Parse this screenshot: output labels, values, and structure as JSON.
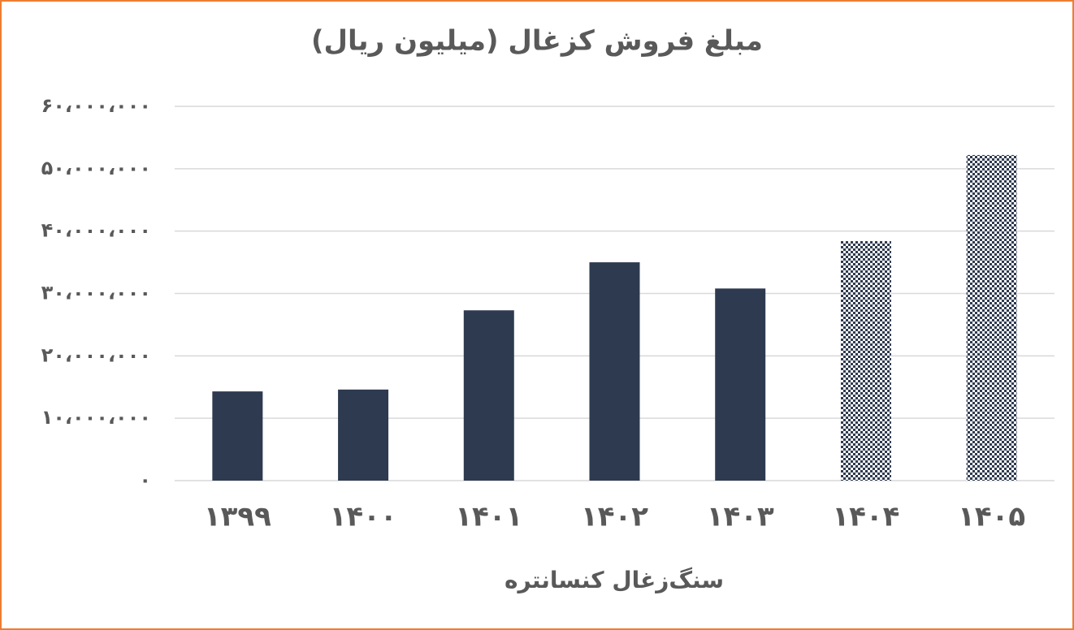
{
  "chart_data": {
    "type": "bar",
    "title": "مبلغ فروش کزغال (میلیون ریال)",
    "x_label": "سنگ‌زغال کنسانتره",
    "categories": [
      "۱۳۹۹",
      "۱۴۰۰",
      "۱۴۰۱",
      "۱۴۰۲",
      "۱۴۰۳",
      "۱۴۰۴",
      "۱۴۰۵"
    ],
    "values": [
      14300000,
      14600000,
      27300000,
      35000000,
      30800000,
      38400000,
      52200000
    ],
    "bar_styles": [
      "solid",
      "solid",
      "solid",
      "solid",
      "solid",
      "checker",
      "checker"
    ],
    "color": "#2e3a4f",
    "ylim": [
      0,
      60000000
    ],
    "yticks": [
      {
        "value": 0,
        "label": "۰"
      },
      {
        "value": 10000000,
        "label": "۱۰،۰۰۰،۰۰۰"
      },
      {
        "value": 20000000,
        "label": "۲۰،۰۰۰،۰۰۰"
      },
      {
        "value": 30000000,
        "label": "۳۰،۰۰۰،۰۰۰"
      },
      {
        "value": 40000000,
        "label": "۴۰،۰۰۰،۰۰۰"
      },
      {
        "value": 50000000,
        "label": "۵۰،۰۰۰،۰۰۰"
      },
      {
        "value": 60000000,
        "label": "۶۰،۰۰۰،۰۰۰"
      }
    ],
    "grid": true
  }
}
